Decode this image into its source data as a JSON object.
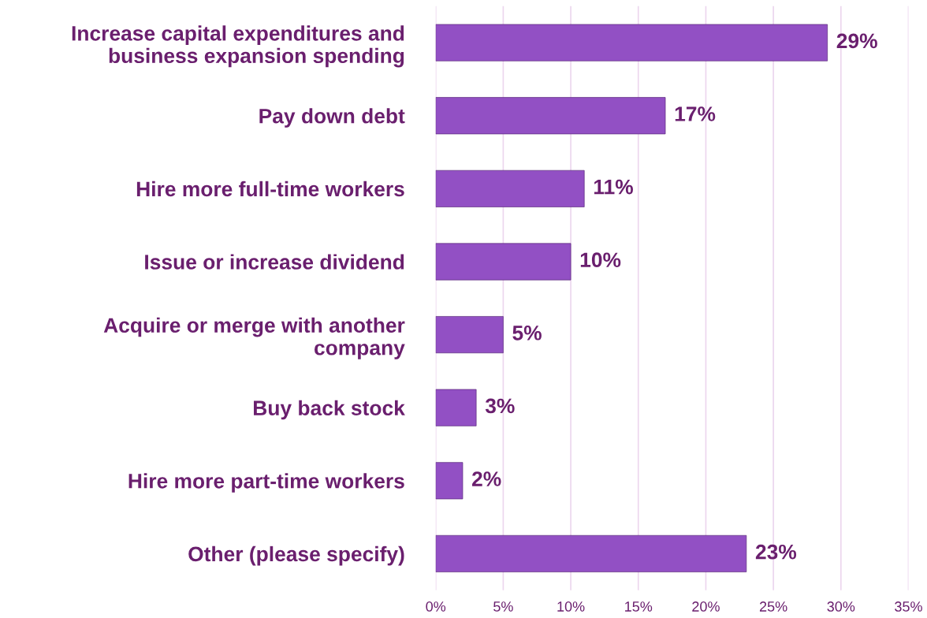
{
  "chart_data": {
    "type": "bar",
    "orientation": "horizontal",
    "categories": [
      "Increase capital expenditures and\nbusiness expansion spending",
      "Pay down debt",
      "Hire more full-time workers",
      "Issue or increase dividend",
      "Acquire or merge with another\ncompany",
      "Buy back stock",
      "Hire more part-time workers",
      "Other (please specify)"
    ],
    "values": [
      29,
      17,
      11,
      10,
      5,
      3,
      2,
      23
    ],
    "color": "#9250c4",
    "value_labels": [
      "29%",
      "17%",
      "11%",
      "10%",
      "5%",
      "3%",
      "2%",
      "23%"
    ],
    "xlim": [
      0,
      35
    ],
    "xticks": [
      {
        "value": 0,
        "label": "0%"
      },
      {
        "value": 5,
        "label": "5%"
      },
      {
        "value": 10,
        "label": "10%"
      },
      {
        "value": 15,
        "label": "15%"
      },
      {
        "value": 20,
        "label": "20%"
      },
      {
        "value": 25,
        "label": "25%"
      },
      {
        "value": 30,
        "label": "30%"
      },
      {
        "value": 35,
        "label": "35%"
      }
    ],
    "grid": "x"
  }
}
